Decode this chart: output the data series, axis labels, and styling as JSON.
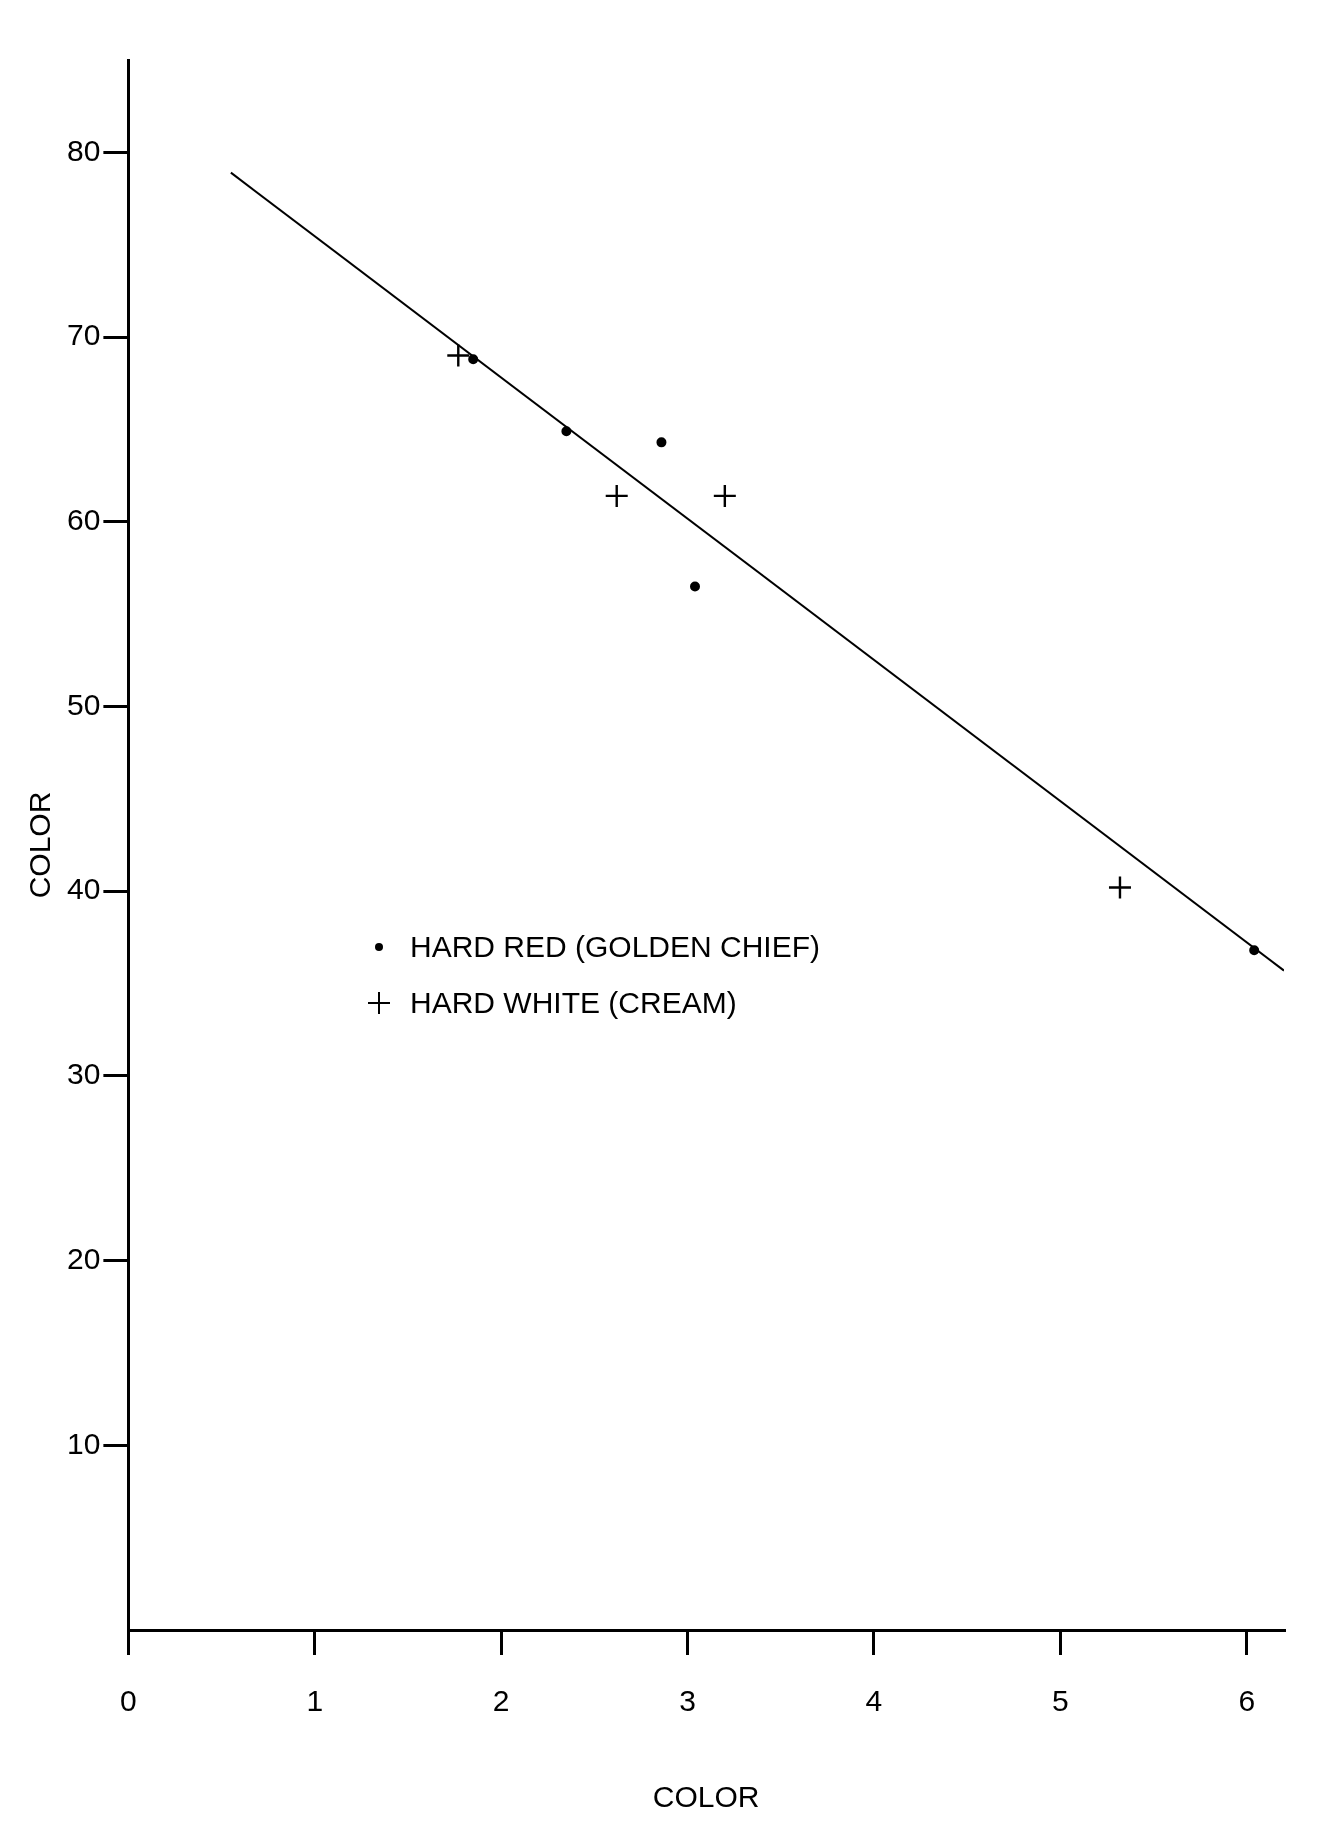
{
  "chart_data": {
    "type": "scatter",
    "xlabel": "COLOR",
    "ylabel": "COLOR",
    "xlim": [
      0,
      6.2
    ],
    "ylim": [
      0,
      85
    ],
    "xticks": [
      0,
      1,
      2,
      3,
      4,
      5,
      6
    ],
    "yticks": [
      10,
      20,
      30,
      40,
      50,
      60,
      70,
      80
    ],
    "grid": false,
    "legend": "center left",
    "series": [
      {
        "name": "HARD RED (GOLDEN CHIEF)",
        "color": "#000000",
        "marker": "circle",
        "x": [
          1.85,
          2.35,
          2.86,
          3.04,
          6.04
        ],
        "values": [
          68.8,
          64.9,
          64.3,
          56.5,
          36.8
        ]
      },
      {
        "name": "HARD WHITE (CREAM)",
        "color": "#000000",
        "marker": "cross",
        "x": [
          1.77,
          2.62,
          3.2,
          5.32
        ],
        "values": [
          69.0,
          61.4,
          61.4,
          40.2
        ]
      },
      {
        "type": "line",
        "color": "#000000",
        "marker": "none",
        "line_style": "solid",
        "x": [
          0.55,
          6.2
        ],
        "values": [
          78.9,
          35.7
        ]
      }
    ]
  }
}
